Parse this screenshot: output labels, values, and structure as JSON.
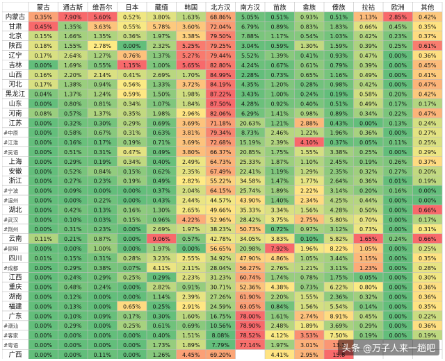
{
  "chart_data": {
    "type": "heatmap",
    "columns": [
      "蒙古",
      "通古斯",
      "维吾尔",
      "日本",
      "藏缅",
      "韩国",
      "北方汉",
      "南方汉",
      "苗族",
      "畲族",
      "傣族",
      "拉祜",
      "欧洲",
      "其他"
    ],
    "rows": [
      {
        "label": "内蒙古",
        "values": [
          "0.35%",
          "7.90%",
          "5.60%",
          "0.52%",
          "3.80%",
          "1.63%",
          "68.86%",
          "5.05%",
          "0.51%",
          "0.93%",
          "0.51%",
          "1.13%",
          "2.85%",
          "0.42%"
        ]
      },
      {
        "label": "甘肃",
        "values": [
          "0.45%",
          "1.35%",
          "3.63%",
          "0.55%",
          "5.78%",
          "3.60%",
          "72.04%",
          "6.79%",
          "0.89%",
          "0.83%",
          "1.83%",
          "0.66%",
          "0.45%",
          "0.35%"
        ]
      },
      {
        "label": "北京",
        "values": [
          "0.15%",
          "1.66%",
          "1.35%",
          "0.36%",
          "1.97%",
          "3.38%",
          "79.50%",
          "7.88%",
          "1.17%",
          "0.54%",
          "1.03%",
          "0.42%",
          "0.23%",
          "0.37%"
        ]
      },
      {
        "label": "陕西",
        "values": [
          "0.18%",
          "1.55%",
          "2.78%",
          "0.00%",
          "2.32%",
          "5.25%",
          "79.25%",
          "3.04%",
          "0.59%",
          "1.30%",
          "1.59%",
          "0.39%",
          "0.25%",
          "0.61%"
        ]
      },
      {
        "label": "辽宁",
        "values": [
          "0.17%",
          "2.64%",
          "1.27%",
          "0.76%",
          "1.37%",
          "5.27%",
          "79.44%",
          "5.52%",
          "1.39%",
          "0.41%",
          "0.93%",
          "0.47%",
          "0.00%",
          "0.36%"
        ]
      },
      {
        "label": "吉林",
        "values": [
          "0.00%",
          "1.69%",
          "0.55%",
          "1.15%",
          "1.00%",
          "5.65%",
          "82.80%",
          "4.24%",
          "0.67%",
          "0.61%",
          "0.79%",
          "0.39%",
          "0.00%",
          "0.45%"
        ]
      },
      {
        "label": "山西",
        "values": [
          "0.16%",
          "2.20%",
          "2.14%",
          "0.41%",
          "2.69%",
          "1.70%",
          "84.99%",
          "2.28%",
          "0.73%",
          "0.65%",
          "1.16%",
          "0.49%",
          "0.00%",
          "0.41%"
        ]
      },
      {
        "label": "河北",
        "values": [
          "0.17%",
          "1.38%",
          "0.94%",
          "0.56%",
          "1.33%",
          "3.72%",
          "84.19%",
          "4.35%",
          "1.20%",
          "0.28%",
          "0.98%",
          "0.42%",
          "0.00%",
          "0.47%"
        ]
      },
      {
        "label": "黑龙江",
        "values": [
          "0.04%",
          "1.37%",
          "1.24%",
          "0.59%",
          "1.50%",
          "1.98%",
          "87.22%",
          "3.43%",
          "1.00%",
          "0.24%",
          "0.19%",
          "0.58%",
          "0.20%",
          "0.42%"
        ]
      },
      {
        "label": "山东",
        "values": [
          "0.00%",
          "0.80%",
          "0.81%",
          "0.34%",
          "1.07%",
          "1.84%",
          "87.50%",
          "4.28%",
          "0.92%",
          "0.40%",
          "0.51%",
          "0.49%",
          "0.17%",
          "0.17%"
        ]
      },
      {
        "label": "河南",
        "values": [
          "0.08%",
          "0.57%",
          "1.37%",
          "0.35%",
          "1.98%",
          "2.96%",
          "82.06%",
          "6.29%",
          "1.41%",
          "0.98%",
          "0.89%",
          "0.34%",
          "0.22%",
          "0.47%"
        ]
      },
      {
        "label": "江苏",
        "values": [
          "0.00%",
          "0.32%",
          "0.30%",
          "0.29%",
          "0.69%",
          "3.69%",
          "71.18%",
          "20.63%",
          "1.21%",
          "2.88%",
          "0.43%",
          "0.00%",
          "0.13%",
          "0.24%"
        ]
      },
      {
        "label": "#中原",
        "values": [
          "0.00%",
          "0.58%",
          "0.67%",
          "0.31%",
          "0.63%",
          "3.81%",
          "79.34%",
          "8.73%",
          "2.46%",
          "1.22%",
          "1.96%",
          "0.36%",
          "0.00%",
          "0.27%"
        ]
      },
      {
        "label": "#江淮",
        "values": [
          "0.00%",
          "0.16%",
          "0.17%",
          "0.19%",
          "0.71%",
          "3.69%",
          "72.68%",
          "15.19%",
          "2.39%",
          "4.10%",
          "0.37%",
          "0.05%",
          "0.11%",
          "0.25%"
        ]
      },
      {
        "label": "#吴语",
        "values": [
          "0.00%",
          "0.51%",
          "0.31%",
          "0.47%",
          "0.49%",
          "3.80%",
          "66.37%",
          "20.85%",
          "1.75%",
          "1.55%",
          "3.38%",
          "0.25%",
          "0.00%",
          "0.29%"
        ]
      },
      {
        "label": "上海",
        "values": [
          "0.00%",
          "0.29%",
          "0.19%",
          "0.34%",
          "0.40%",
          "2.49%",
          "64.73%",
          "25.33%",
          "1.87%",
          "1.10%",
          "2.45%",
          "0.19%",
          "0.26%",
          "0.37%"
        ]
      },
      {
        "label": "安徽",
        "values": [
          "0.00%",
          "0.52%",
          "0.84%",
          "0.15%",
          "0.62%",
          "2.35%",
          "67.49%",
          "22.41%",
          "1.19%",
          "1.29%",
          "2.35%",
          "0.32%",
          "0.27%",
          "0.20%"
        ]
      },
      {
        "label": "浙江",
        "values": [
          "0.00%",
          "0.27%",
          "0.23%",
          "0.19%",
          "0.49%",
          "2.82%",
          "55.22%",
          "34.58%",
          "1.47%",
          "1.77%",
          "2.64%",
          "0.36%",
          "0.01%",
          "0.19%"
        ]
      },
      {
        "label": "#宁波",
        "values": [
          "0.00%",
          "0.09%",
          "0.00%",
          "0.00%",
          "0.37%",
          "2.04%",
          "64.15%",
          "25.74%",
          "1.89%",
          "2.22%",
          "3.14%",
          "0.20%",
          "0.16%",
          "0.00%"
        ]
      },
      {
        "label": "#温州",
        "values": [
          "0.00%",
          "0.00%",
          "0.22%",
          "0.00%",
          "0.43%",
          "2.44%",
          "44.57%",
          "43.90%",
          "1.40%",
          "2.34%",
          "4.25%",
          "0.44%",
          "0.00%",
          "0.00%"
        ]
      },
      {
        "label": "湖北",
        "values": [
          "0.00%",
          "0.42%",
          "0.13%",
          "0.16%",
          "1.30%",
          "2.65%",
          "49.66%",
          "35.33%",
          "3.34%",
          "1.56%",
          "4.28%",
          "0.50%",
          "0.00%",
          "0.66%"
        ]
      },
      {
        "label": "#武汉",
        "values": [
          "0.00%",
          "0.10%",
          "0.03%",
          "0.15%",
          "0.96%",
          "4.22%",
          "52.96%",
          "28.42%",
          "3.75%",
          "2.75%",
          "5.80%",
          "0.70%",
          "0.00%",
          "0.17%"
        ]
      },
      {
        "label": "#荆州",
        "values": [
          "0.00%",
          "0.31%",
          "0.23%",
          "0.00%",
          "2.69%",
          "1.97%",
          "38.23%",
          "50.73%",
          "0.72%",
          "0.97%",
          "3.12%",
          "0.73%",
          "0.00%",
          "0.31%"
        ]
      },
      {
        "label": "云南",
        "values": [
          "0.11%",
          "0.21%",
          "0.87%",
          "0.00%",
          "9.06%",
          "0.57%",
          "42.78%",
          "34.05%",
          "3.83%",
          "0.10%",
          "5.82%",
          "1.65%",
          "0.24%",
          "0.66%"
        ]
      },
      {
        "label": "#昆明",
        "values": [
          "0.00%",
          "0.00%",
          "1.00%",
          "0.00%",
          "1.97%",
          "0.00%",
          "56.65%",
          "20.98%",
          "7.92%",
          "1.96%",
          "8.22%",
          "1.05%",
          "0.00%",
          "0.25%"
        ]
      },
      {
        "label": "四川",
        "values": [
          "0.01%",
          "0.15%",
          "0.31%",
          "0.28%",
          "3.23%",
          "2.55%",
          "34.92%",
          "47.90%",
          "4.86%",
          "1.05%",
          "3.44%",
          "1.15%",
          "0.00%",
          "0.35%"
        ]
      },
      {
        "label": "#成都",
        "values": [
          "0.00%",
          "0.29%",
          "0.38%",
          "0.07%",
          "4.11%",
          "2.11%",
          "28.04%",
          "56.27%",
          "2.76%",
          "1.21%",
          "3.11%",
          "1.23%",
          "0.00%",
          "0.28%"
        ]
      },
      {
        "label": "江西",
        "values": [
          "0.00%",
          "0.24%",
          "0.29%",
          "0.25%",
          "0.29%",
          "2.23%",
          "31.23%",
          "60.74%",
          "1.74%",
          "0.78%",
          "1.75%",
          "0.05%",
          "0.00%",
          "0.30%"
        ]
      },
      {
        "label": "重庆",
        "values": [
          "0.00%",
          "0.48%",
          "0.24%",
          "0.00%",
          "2.82%",
          "0.91%",
          "30.71%",
          "52.36%",
          "4.38%",
          "0.73%",
          "6.22%",
          "0.80%",
          "0.00%",
          "0.36%"
        ]
      },
      {
        "label": "湖南",
        "values": [
          "0.00%",
          "0.12%",
          "0.00%",
          "0.00%",
          "1.14%",
          "2.39%",
          "27.26%",
          "61.90%",
          "2.20%",
          "1.55%",
          "2.36%",
          "0.32%",
          "0.00%",
          "0.36%"
        ]
      },
      {
        "label": "福建",
        "values": [
          "0.00%",
          "0.13%",
          "0.00%",
          "0.65%",
          "0.25%",
          "2.91%",
          "24.59%",
          "63.05%",
          "0.84%",
          "1.56%",
          "5.54%",
          "0.14%",
          "0.00%",
          "0.35%"
        ]
      },
      {
        "label": "广东",
        "values": [
          "0.00%",
          "0.10%",
          "0.09%",
          "0.17%",
          "0.30%",
          "1.60%",
          "16.75%",
          "78.00%",
          "1.61%",
          "2.74%",
          "8.91%",
          "0.45%",
          "0.00%",
          "0.22%"
        ]
      },
      {
        "label": "#潮汕",
        "values": [
          "0.00%",
          "0.29%",
          "0.00%",
          "0.25%",
          "0.61%",
          "0.69%",
          "10.56%",
          "78.90%",
          "2.48%",
          "1.89%",
          "3.69%",
          "0.29%",
          "0.00%",
          "0.36%"
        ]
      },
      {
        "label": "#客家",
        "values": [
          "0.00%",
          "0.00%",
          "0.00%",
          "0.00%",
          "0.40%",
          "1.51%",
          "8.08%",
          "78.52%",
          "4.12%",
          "3.53%",
          "7.50%",
          "0.19%",
          "0.00%",
          "0.19%"
        ]
      },
      {
        "label": "#粤语",
        "values": [
          "0.00%",
          "0.00%",
          "0.00%",
          "0.00%",
          "1.73%",
          "1.89%",
          "7.79%",
          "77.14%",
          "1.97%",
          "3.01%",
          "13.1",
          "",
          "",
          ""
        ]
      },
      {
        "label": "广西",
        "values": [
          "0.00%",
          "0.00%",
          "0.11%",
          "0.00%",
          "1.26%",
          "4.45%",
          "69.20%",
          "",
          "4.41%",
          "2.95%",
          "15.8",
          "",
          "",
          ""
        ]
      }
    ],
    "watermark": "头条 @万子人来一趟吧"
  }
}
